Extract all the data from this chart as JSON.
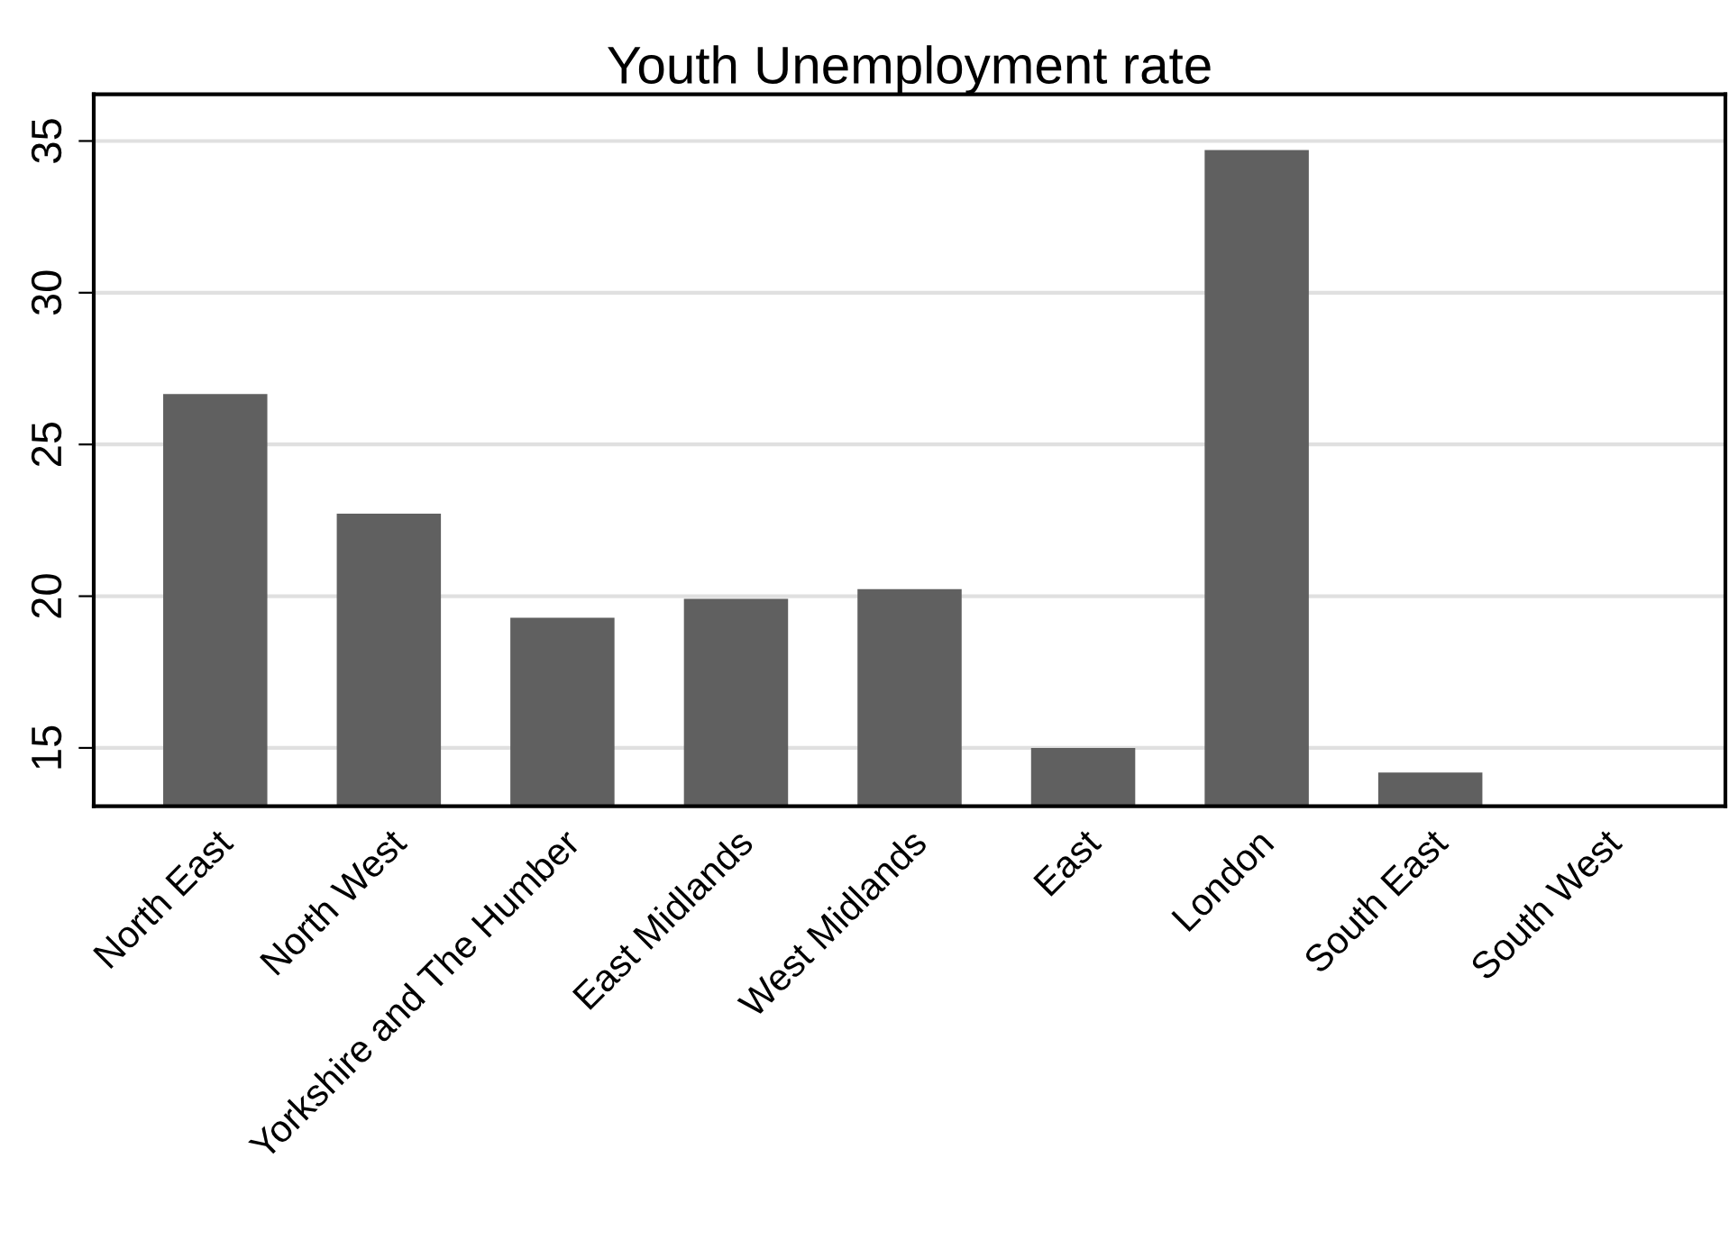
{
  "chart_data": {
    "type": "bar",
    "title": "Youth Unemployment rate",
    "categories": [
      "North East",
      "North West",
      "Yorkshire and The Humber",
      "East Midlands",
      "West Midlands",
      "East",
      "London",
      "South East",
      "South West"
    ],
    "values": [
      26.66,
      22.72,
      19.29,
      19.91,
      20.23,
      15.0,
      34.7,
      14.19,
      null
    ],
    "color": "#606060",
    "ylim": [
      13.08,
      36.54
    ],
    "yticks": [
      15,
      20,
      25,
      30,
      35
    ],
    "grid": "y",
    "legend": false
  }
}
